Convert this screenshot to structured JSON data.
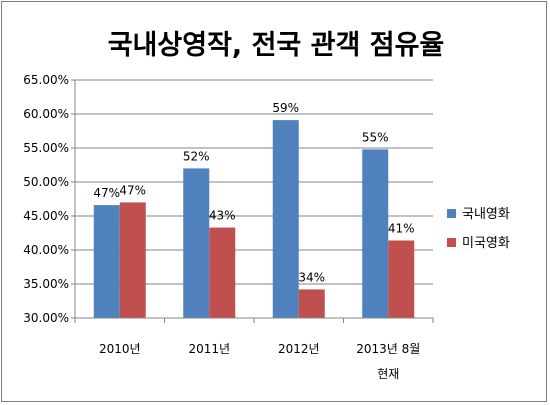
{
  "chart_data": {
    "type": "bar",
    "title": "국내상영작, 전국 관객 점유율",
    "xlabel": "",
    "ylabel": "",
    "ylim": [
      30,
      65
    ],
    "yticks": [
      30,
      35,
      40,
      45,
      50,
      55,
      60,
      65
    ],
    "ytick_labels": [
      "30.00%",
      "35.00%",
      "40.00%",
      "45.00%",
      "50.00%",
      "55.00%",
      "60.00%",
      "65.00%"
    ],
    "categories": [
      [
        "2010년"
      ],
      [
        "2011년"
      ],
      [
        "2012년"
      ],
      [
        "2013년 8월",
        "현재"
      ]
    ],
    "series": [
      {
        "name": "국내영화",
        "color": "#4f81bd",
        "values": [
          46.6,
          52.0,
          59.1,
          54.8
        ],
        "labels": [
          "47%",
          "52%",
          "59%",
          "55%"
        ]
      },
      {
        "name": "미국영화",
        "color": "#c0504d",
        "values": [
          47.0,
          43.3,
          34.2,
          41.4
        ],
        "labels": [
          "47%",
          "43%",
          "34%",
          "41%"
        ]
      }
    ],
    "grid": true,
    "legend": "right"
  }
}
